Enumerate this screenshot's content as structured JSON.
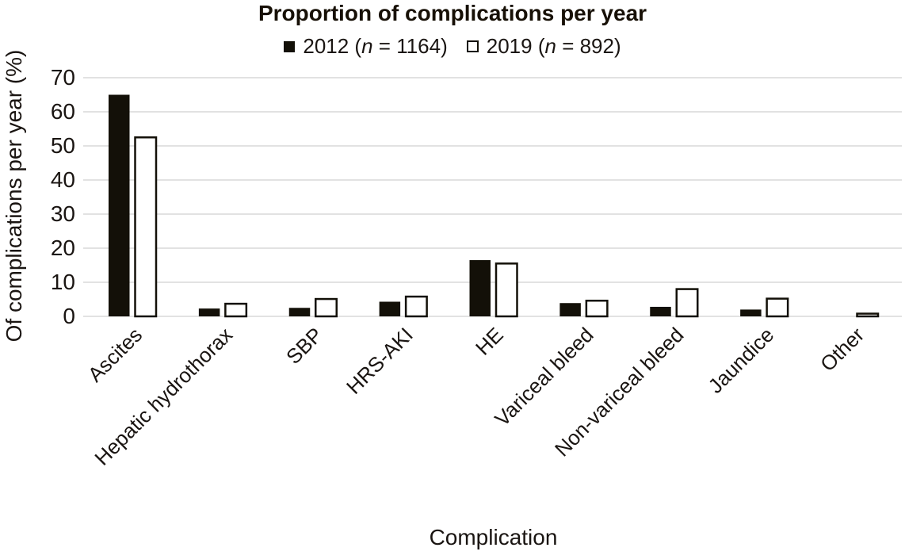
{
  "title": "Proportion of complications per year",
  "legend": {
    "items": [
      {
        "pre": "2012 (",
        "n": "n",
        "post": " = 1164)",
        "swatch": "filled"
      },
      {
        "pre": "2019 (",
        "n": "n",
        "post": " = 892)",
        "swatch": "outlined"
      }
    ]
  },
  "chart_data": {
    "type": "bar",
    "title": "Proportion of complications per year",
    "categories": [
      "Ascites",
      "Hepatic hydrothorax",
      "SBP",
      "HRS-AKI",
      "HE",
      "Variceal bleed",
      "Non-variceal bleed",
      "Jaundice",
      "Other"
    ],
    "series": [
      {
        "name": "2012 (n = 1164)",
        "fill": "#131008",
        "stroke": "none",
        "values": [
          65,
          2.3,
          2.5,
          4.3,
          16.5,
          3.9,
          2.8,
          2.0,
          0
        ]
      },
      {
        "name": "2019 (n = 892)",
        "fill": "#ffffff",
        "stroke": "#131008",
        "values": [
          52.5,
          3.7,
          5.1,
          5.8,
          15.5,
          4.6,
          8.0,
          5.2,
          0.8
        ]
      }
    ],
    "xlabel": "Complication",
    "ylabel": "Of complications per year (%)",
    "ylim": [
      0,
      70
    ],
    "yticks": [
      0,
      10,
      20,
      30,
      40,
      50,
      60,
      70
    ],
    "grid": true,
    "legend_position": "top"
  },
  "colors": {
    "bar_black": "#131008",
    "bar_white": "#ffffff",
    "bar_outline": "#131008",
    "gridline": "#d9d9d9",
    "text": "#1a1512",
    "background": "#ffffff"
  }
}
